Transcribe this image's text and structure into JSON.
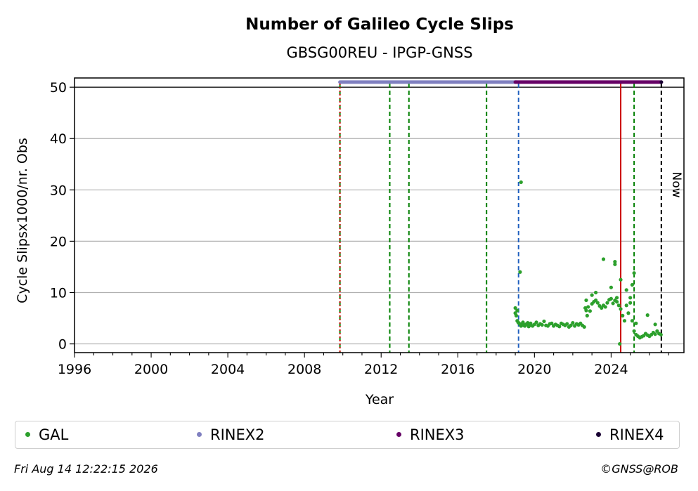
{
  "chart_data": {
    "type": "scatter",
    "title": "Number of Galileo Cycle Slips",
    "subtitle": "GBSG00REU - IPGP-GNSS",
    "xlabel": "Year",
    "ylabel": "Cycle Slipsx1000/nr. Obs",
    "xlim": [
      1996.0,
      2027.8
    ],
    "ylim": [
      -1.7,
      51.8
    ],
    "x_ticks": [
      1996,
      2000,
      2004,
      2008,
      2012,
      2016,
      2020,
      2024
    ],
    "y_ticks": [
      0,
      10,
      20,
      30,
      40,
      50
    ],
    "grid": "horizontal",
    "now_label": "Now",
    "now_x": 2026.62,
    "vlines": [
      {
        "x": 2009.85,
        "color": "#008000",
        "style": "dashed"
      },
      {
        "x": 2009.85,
        "color": "#cc0000",
        "style": "dotted"
      },
      {
        "x": 2012.45,
        "color": "#008000",
        "style": "dashed"
      },
      {
        "x": 2013.45,
        "color": "#008000",
        "style": "dashed"
      },
      {
        "x": 2017.5,
        "color": "#008000",
        "style": "dashed"
      },
      {
        "x": 2019.17,
        "color": "#1f5fbf",
        "style": "dashed"
      },
      {
        "x": 2024.5,
        "color": "#cc0000",
        "style": "solid"
      },
      {
        "x": 2025.2,
        "color": "#008000",
        "style": "dashed"
      },
      {
        "x": 2026.62,
        "color": "#000000",
        "style": "dashed"
      }
    ],
    "series": [
      {
        "name": "GAL",
        "color": "#2ca02c",
        "x": [
          2019.0,
          2019.05,
          2019.1,
          2019.15,
          2019.2,
          2019.25,
          2019.3,
          2019.35,
          2019.4,
          2019.45,
          2019.5,
          2019.55,
          2019.6,
          2019.65,
          2019.7,
          2019.75,
          2019.8,
          2019.9,
          2020.0,
          2020.1,
          2020.2,
          2020.3,
          2020.4,
          2020.5,
          2020.6,
          2020.7,
          2020.8,
          2020.9,
          2021.0,
          2021.1,
          2021.2,
          2021.3,
          2021.4,
          2021.5,
          2021.6,
          2021.7,
          2021.8,
          2021.9,
          2022.0,
          2022.1,
          2022.2,
          2022.3,
          2022.4,
          2022.5,
          2022.6,
          2022.65,
          2022.7,
          2022.8,
          2022.9,
          2023.0,
          2023.1,
          2023.2,
          2023.3,
          2023.4,
          2023.5,
          2023.6,
          2023.7,
          2023.8,
          2023.9,
          2024.0,
          2024.1,
          2024.2,
          2024.3,
          2024.4,
          2024.5,
          2024.6,
          2024.7,
          2024.8,
          2024.9,
          2025.0,
          2025.1,
          2025.2,
          2025.3,
          2025.4,
          2025.5,
          2025.6,
          2025.7,
          2025.8,
          2025.9,
          2026.0,
          2026.1,
          2026.2,
          2026.3,
          2026.4,
          2026.5,
          2026.6,
          2019.3,
          2019.25,
          2023.6,
          2024.2,
          2024.2,
          2024.5,
          2025.2,
          2025.9,
          2024.45,
          2019.0,
          2019.1,
          2022.7,
          2022.75,
          2023.0,
          2023.2,
          2024.0,
          2024.3,
          2024.8,
          2025.0,
          2025.1,
          2025.3,
          2026.3
        ],
        "y": [
          7.0,
          5.5,
          4.5,
          4.2,
          4.0,
          3.8,
          3.5,
          3.9,
          4.2,
          3.6,
          3.5,
          3.8,
          3.9,
          4.1,
          3.4,
          3.6,
          4.0,
          3.5,
          3.8,
          4.2,
          3.6,
          3.9,
          3.7,
          4.4,
          3.6,
          3.5,
          3.9,
          4.0,
          3.5,
          3.8,
          3.6,
          3.4,
          4.0,
          3.8,
          3.6,
          3.9,
          3.3,
          3.6,
          4.1,
          3.5,
          3.9,
          3.7,
          4.0,
          3.6,
          3.3,
          7.0,
          6.5,
          7.2,
          6.4,
          7.8,
          8.2,
          8.5,
          8.0,
          7.4,
          7.0,
          7.5,
          7.2,
          8.0,
          8.6,
          8.8,
          7.9,
          8.5,
          8.2,
          7.5,
          6.8,
          5.5,
          4.5,
          7.5,
          6.0,
          8.0,
          4.5,
          2.5,
          1.8,
          1.5,
          1.2,
          1.4,
          1.6,
          2.0,
          1.7,
          1.5,
          1.8,
          2.2,
          1.9,
          2.5,
          2.0,
          1.8,
          31.5,
          14.0,
          16.5,
          16.0,
          15.5,
          12.5,
          13.8,
          5.6,
          0.0,
          6.0,
          6.5,
          8.5,
          5.5,
          9.5,
          10.0,
          11.0,
          9.0,
          10.5,
          9.0,
          11.5,
          4.0,
          3.8
        ]
      },
      {
        "name": "RINEX2",
        "color": "#8080c0",
        "x_start": 2009.85,
        "x_end": 2019.05,
        "y": 51.0
      },
      {
        "name": "RINEX3",
        "color": "#660066",
        "x_start": 2019.0,
        "x_end": 2026.62,
        "y": 51.0
      },
      {
        "name": "RINEX4",
        "color": "#1a0033",
        "x_start": 2026.62,
        "x_end": 2026.62,
        "y": 51.0
      }
    ]
  },
  "legend": [
    {
      "label": "GAL",
      "color": "#2ca02c"
    },
    {
      "label": "RINEX2",
      "color": "#8080c0"
    },
    {
      "label": "RINEX3",
      "color": "#660066"
    },
    {
      "label": "RINEX4",
      "color": "#1a0033"
    }
  ],
  "footer": {
    "timestamp": "Fri Aug 14 12:22:15 2026",
    "credit": "©GNSS@ROB"
  }
}
